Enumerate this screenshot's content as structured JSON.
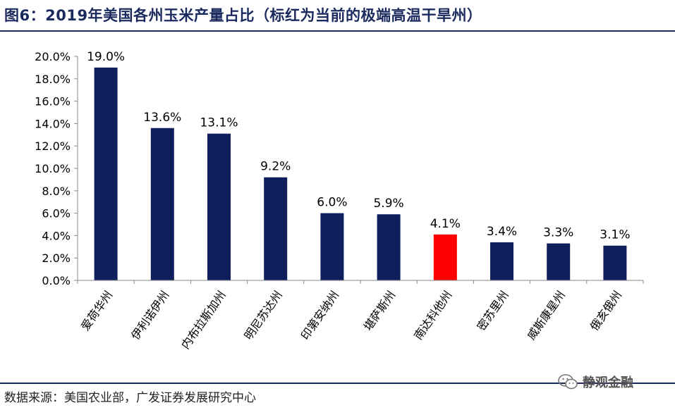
{
  "header": {
    "title": "图6：2019年美国各州玉米产量占比（标红为当前的极端高温干旱州）"
  },
  "footer": {
    "source": "数据来源：美国农业部，广发证券发展研究中心",
    "watermark_text": "静观金融",
    "watermark_icon": "wechat-icon"
  },
  "colors": {
    "bar": "#0f1f5c",
    "highlight": "#ff0000",
    "title": "#1a2a5e"
  },
  "chart_data": {
    "type": "bar",
    "categories": [
      "爱荷华州",
      "伊利诺伊州",
      "内布拉斯加州",
      "明尼苏达州",
      "印第安纳州",
      "堪萨斯州",
      "南达科他州",
      "密苏里州",
      "威斯康星州",
      "俄亥俄州"
    ],
    "values": [
      19.0,
      13.6,
      13.1,
      9.2,
      6.0,
      5.9,
      4.1,
      3.4,
      3.3,
      3.1
    ],
    "value_labels": [
      "19.0%",
      "13.6%",
      "13.1%",
      "9.2%",
      "6.0%",
      "5.9%",
      "4.1%",
      "3.4%",
      "3.3%",
      "3.1%"
    ],
    "highlighted": [
      "南达科他州"
    ],
    "title": "",
    "xlabel": "",
    "ylabel": "",
    "ylim": [
      0,
      20
    ],
    "yticks": [
      0,
      2,
      4,
      6,
      8,
      10,
      12,
      14,
      16,
      18,
      20
    ],
    "ytick_labels": [
      "0.0%",
      "2.0%",
      "4.0%",
      "6.0%",
      "8.0%",
      "10.0%",
      "12.0%",
      "14.0%",
      "16.0%",
      "18.0%",
      "20.0%"
    ],
    "grid": false,
    "legend": "none"
  }
}
